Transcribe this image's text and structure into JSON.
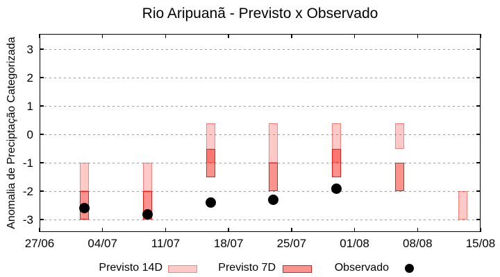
{
  "chart_data": {
    "type": "range-bar",
    "title": "Rio Aripuanã - Previsto x Observado",
    "ylabel": "Anomalia de Preciptação Categorizada",
    "x_tick_labels": [
      "27/06",
      "04/07",
      "11/07",
      "18/07",
      "25/07",
      "01/08",
      "08/08",
      "15/08"
    ],
    "x_tick_days": [
      0,
      7,
      14,
      21,
      28,
      35,
      42,
      49
    ],
    "x_range_days": [
      0,
      49
    ],
    "y_ticks": [
      3,
      2,
      1,
      0,
      -1,
      -2,
      -3
    ],
    "ylim": [
      -3.4,
      3.5
    ],
    "grid": "horizontal-dotted",
    "legend_position": "bottom",
    "series": [
      {
        "name": "Previsto 14D",
        "style": "bar-light",
        "points": [
          {
            "date": "02/07",
            "day": 5,
            "high": -1.0,
            "low": -2.0
          },
          {
            "date": "09/07",
            "day": 12,
            "high": -1.0,
            "low": -2.0
          },
          {
            "date": "16/07",
            "day": 19,
            "high": 0.4,
            "low": -1.0
          },
          {
            "date": "23/07",
            "day": 26,
            "high": 0.4,
            "low": -1.0
          },
          {
            "date": "30/07",
            "day": 33,
            "high": 0.4,
            "low": -1.0
          },
          {
            "date": "06/08",
            "day": 40,
            "high": 0.4,
            "low": -0.5
          },
          {
            "date": "13/08",
            "day": 47,
            "high": -2.0,
            "low": -3.0
          }
        ]
      },
      {
        "name": "Previsto 7D",
        "style": "bar-dark",
        "points": [
          {
            "date": "02/07",
            "day": 5,
            "high": -2.0,
            "low": -3.0
          },
          {
            "date": "09/07",
            "day": 12,
            "high": -2.0,
            "low": -3.0
          },
          {
            "date": "16/07",
            "day": 19,
            "high": -0.5,
            "low": -1.5
          },
          {
            "date": "23/07",
            "day": 26,
            "high": -1.0,
            "low": -2.0
          },
          {
            "date": "30/07",
            "day": 33,
            "high": -0.5,
            "low": -1.5
          },
          {
            "date": "06/08",
            "day": 40,
            "high": -1.0,
            "low": -2.0
          }
        ]
      },
      {
        "name": "Observado",
        "style": "dot",
        "points": [
          {
            "date": "02/07",
            "day": 5,
            "value": -2.6
          },
          {
            "date": "09/07",
            "day": 12,
            "value": -2.8
          },
          {
            "date": "16/07",
            "day": 19,
            "value": -2.4
          },
          {
            "date": "23/07",
            "day": 26,
            "value": -2.3
          },
          {
            "date": "30/07",
            "day": 33,
            "value": -1.9
          }
        ]
      }
    ],
    "colors": {
      "base_red": "#fa261c",
      "light_fill": "rgba(250,38,28,0.25)",
      "light_border": "rgba(250,38,28,0.45)",
      "dark_fill": "rgba(250,38,28,0.5)",
      "dark_border": "#ee1a12",
      "observado_dot": "#000000",
      "grid": "#9a9a9a",
      "frame": "#000000"
    }
  }
}
